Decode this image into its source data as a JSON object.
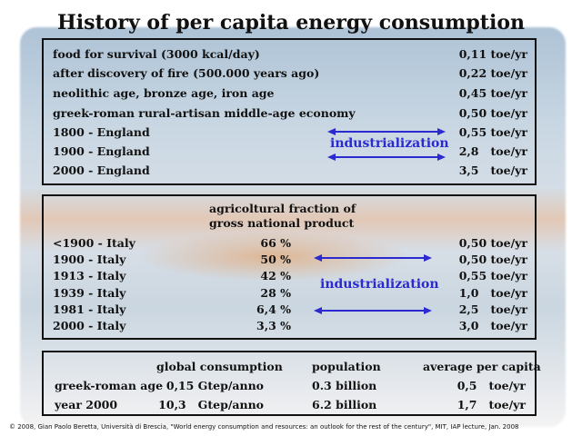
{
  "title": "History of per capita energy consumption",
  "box1": {
    "rows": [
      {
        "label": "food for survival (3000 kcal/day)",
        "value": "0,11 toe/yr"
      },
      {
        "label": "after discovery of fire (500.000 years ago)",
        "value": "0,22 toe/yr"
      },
      {
        "label": "neolithic age, bronze age, iron age",
        "value": "0,45 toe/yr"
      },
      {
        "label": "greek-roman rural-artisan middle-age economy",
        "value": "0,50 toe/yr"
      },
      {
        "label": "1800 - England",
        "value": "0,55 toe/yr"
      },
      {
        "label": "1900 - England",
        "value": "2,8   toe/yr"
      },
      {
        "label": "2000 - England",
        "value": "3,5   toe/yr"
      }
    ],
    "annotation": "industrialization"
  },
  "box2": {
    "header_line1": "agricoltural fraction of",
    "header_line2": "gross national product",
    "rows": [
      {
        "label": "<1900 - Italy",
        "fraction": "66 %",
        "value": "0,50 toe/yr"
      },
      {
        "label": "1900 - Italy",
        "fraction": "50 %",
        "value": "0,50 toe/yr"
      },
      {
        "label": "1913 - Italy",
        "fraction": "42 %",
        "value": "0,55 toe/yr"
      },
      {
        "label": "1939 - Italy",
        "fraction": "28 %",
        "value": "1,0   toe/yr"
      },
      {
        "label": "1981 - Italy",
        "fraction": "6,4 %",
        "value": "2,5   toe/yr"
      },
      {
        "label": "2000 - Italy",
        "fraction": "3,3 %",
        "value": "3,0   toe/yr"
      }
    ],
    "annotation": "industrialization"
  },
  "box3": {
    "headers": [
      "global consumption",
      "population",
      "average per capita"
    ],
    "rows": [
      {
        "label": "greek-roman age",
        "consumption": "0,15 Gtep/anno",
        "population": "0.3 billion",
        "average": "0,5   toe/yr"
      },
      {
        "label": "year 2000",
        "consumption": "10,3   Gtep/anno",
        "population": "6.2 billion",
        "average": "1,7   toe/yr"
      }
    ]
  },
  "footer": "© 2008, Gian Paolo Beretta, Università di Brescia, \"World energy consumption and resources: an outlook for the rest of the century\", MIT, IAP lecture, Jan. 2008",
  "colors": {
    "annotation": "#2a2ad0",
    "border": "#111111"
  }
}
